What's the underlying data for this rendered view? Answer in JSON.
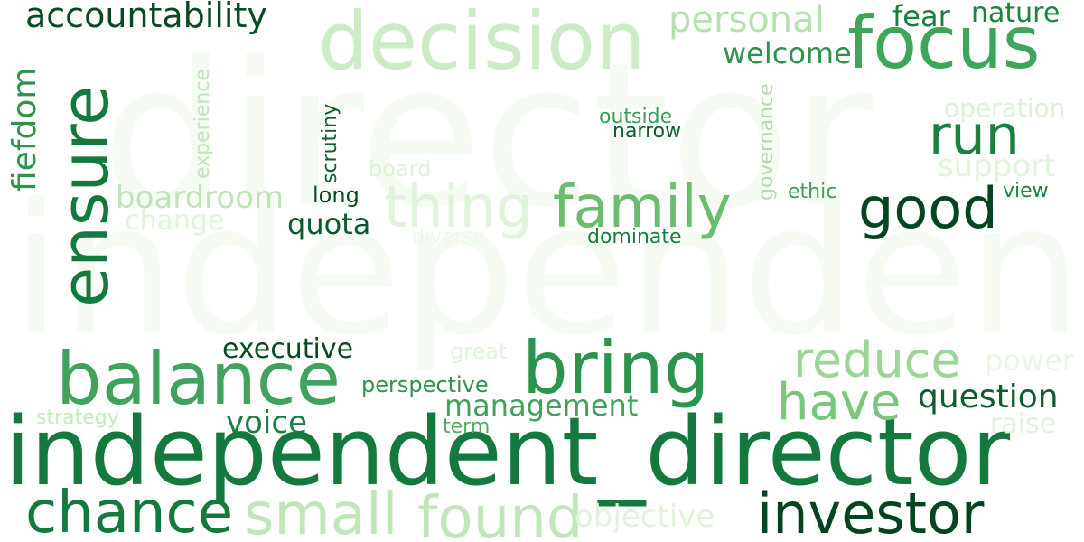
{
  "words": [
    {
      "key": "director",
      "text": "director",
      "color": "#f5fbf3"
    },
    {
      "key": "independent",
      "text": "independent",
      "color": "#f5fbf3"
    },
    {
      "key": "independent_director",
      "text": "independent_director",
      "color": "#13793e"
    },
    {
      "key": "ensure",
      "text": "ensure",
      "color": "#13793e"
    },
    {
      "key": "decision",
      "text": "decision",
      "color": "#cdebc6"
    },
    {
      "key": "focus",
      "text": "focus",
      "color": "#3da65a"
    },
    {
      "key": "accountability",
      "text": "accountability",
      "color": "#0a4a23"
    },
    {
      "key": "personal",
      "text": "personal",
      "color": "#b6e1ae"
    },
    {
      "key": "fear",
      "text": "fear",
      "color": "#17803f"
    },
    {
      "key": "nature",
      "text": "nature",
      "color": "#1a8441"
    },
    {
      "key": "welcome",
      "text": "welcome",
      "color": "#2e934d"
    },
    {
      "key": "fiefdom",
      "text": "fiefdom",
      "color": "#2e934d"
    },
    {
      "key": "experience",
      "text": "experience",
      "color": "#c2e6bb"
    },
    {
      "key": "scrutiny",
      "text": "scrutiny",
      "color": "#0d5d2d"
    },
    {
      "key": "governance",
      "text": "governance",
      "color": "#b0dda9"
    },
    {
      "key": "outside",
      "text": "outside",
      "color": "#389e56"
    },
    {
      "key": "narrow",
      "text": "narrow",
      "color": "#0d5d2d"
    },
    {
      "key": "operation",
      "text": "operation",
      "color": "#dcf1d7"
    },
    {
      "key": "run",
      "text": "run",
      "color": "#1b7f3f"
    },
    {
      "key": "support",
      "text": "support",
      "color": "#e0f3db"
    },
    {
      "key": "board",
      "text": "board",
      "color": "#dcf1d7"
    },
    {
      "key": "boardroom",
      "text": "boardroom",
      "color": "#bfe4b8"
    },
    {
      "key": "thing",
      "text": "thing",
      "color": "#e0f3db"
    },
    {
      "key": "family",
      "text": "family",
      "color": "#6bbd6e"
    },
    {
      "key": "good",
      "text": "good",
      "color": "#034421"
    },
    {
      "key": "long",
      "text": "long",
      "color": "#0a4a23"
    },
    {
      "key": "ethic",
      "text": "ethic",
      "color": "#3d9f5a"
    },
    {
      "key": "view",
      "text": "view",
      "color": "#1a8441"
    },
    {
      "key": "change",
      "text": "change",
      "color": "#e0f3db"
    },
    {
      "key": "quota",
      "text": "quota",
      "color": "#0a5b2b"
    },
    {
      "key": "diverse",
      "text": "diverse",
      "color": "#eef8ea"
    },
    {
      "key": "dominate",
      "text": "dominate",
      "color": "#17803f"
    },
    {
      "key": "executive",
      "text": "executive",
      "color": "#0a4a23"
    },
    {
      "key": "great",
      "text": "great",
      "color": "#e0f3db"
    },
    {
      "key": "balance",
      "text": "balance",
      "color": "#40a25c"
    },
    {
      "key": "bring",
      "text": "bring",
      "color": "#2c954d"
    },
    {
      "key": "reduce",
      "text": "reduce",
      "color": "#9dd598"
    },
    {
      "key": "power",
      "text": "power",
      "color": "#eaf6e5"
    },
    {
      "key": "have",
      "text": "have",
      "color": "#7ac77b"
    },
    {
      "key": "question",
      "text": "question",
      "color": "#0d5d2d"
    },
    {
      "key": "perspective",
      "text": "perspective",
      "color": "#2e934d"
    },
    {
      "key": "management",
      "text": "management",
      "color": "#40a25c"
    },
    {
      "key": "strategy",
      "text": "strategy",
      "color": "#c7e9c0"
    },
    {
      "key": "voice",
      "text": "voice",
      "color": "#17803f"
    },
    {
      "key": "term",
      "text": "term",
      "color": "#4aaf61"
    },
    {
      "key": "raise",
      "text": "raise",
      "color": "#e0f3db"
    },
    {
      "key": "chance",
      "text": "chance",
      "color": "#13793e"
    },
    {
      "key": "small",
      "text": "small",
      "color": "#c2e6bb"
    },
    {
      "key": "found",
      "text": "found",
      "color": "#c2e6bb"
    },
    {
      "key": "objective",
      "text": "objective",
      "color": "#e0f3db"
    },
    {
      "key": "investor",
      "text": "investor",
      "color": "#034421"
    }
  ]
}
